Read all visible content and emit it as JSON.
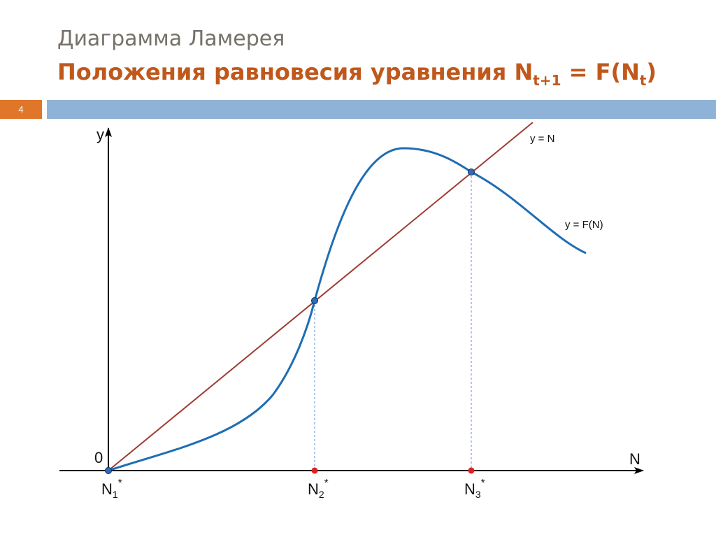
{
  "slide": {
    "subtitle": "Диаграмма Ламерея",
    "title_prefix": "Положения равновесия уравнения N",
    "title_sub1": "t+1",
    "title_mid": " = F(N",
    "title_sub2": "t",
    "title_suffix": ")",
    "number": "4"
  },
  "diagram": {
    "y_axis_label": "y",
    "x_axis_label": "N",
    "origin_label": "0",
    "line_label": "y = N",
    "curve_label": "y = F(N)",
    "equilibria": [
      {
        "base": "N",
        "sub": "1",
        "sup": "*"
      },
      {
        "base": "N",
        "sub": "2",
        "sup": "*"
      },
      {
        "base": "N",
        "sub": "3",
        "sup": "*"
      }
    ],
    "colors": {
      "curve": "#1f6db3",
      "line": "#a03c32",
      "axis": "#000000",
      "axis_point": "#e02020",
      "equilibrium_point": "#2f6cb8",
      "accent_orange": "#e0762a",
      "accent_blue": "#8fb3d6",
      "title": "#c0581c"
    }
  }
}
